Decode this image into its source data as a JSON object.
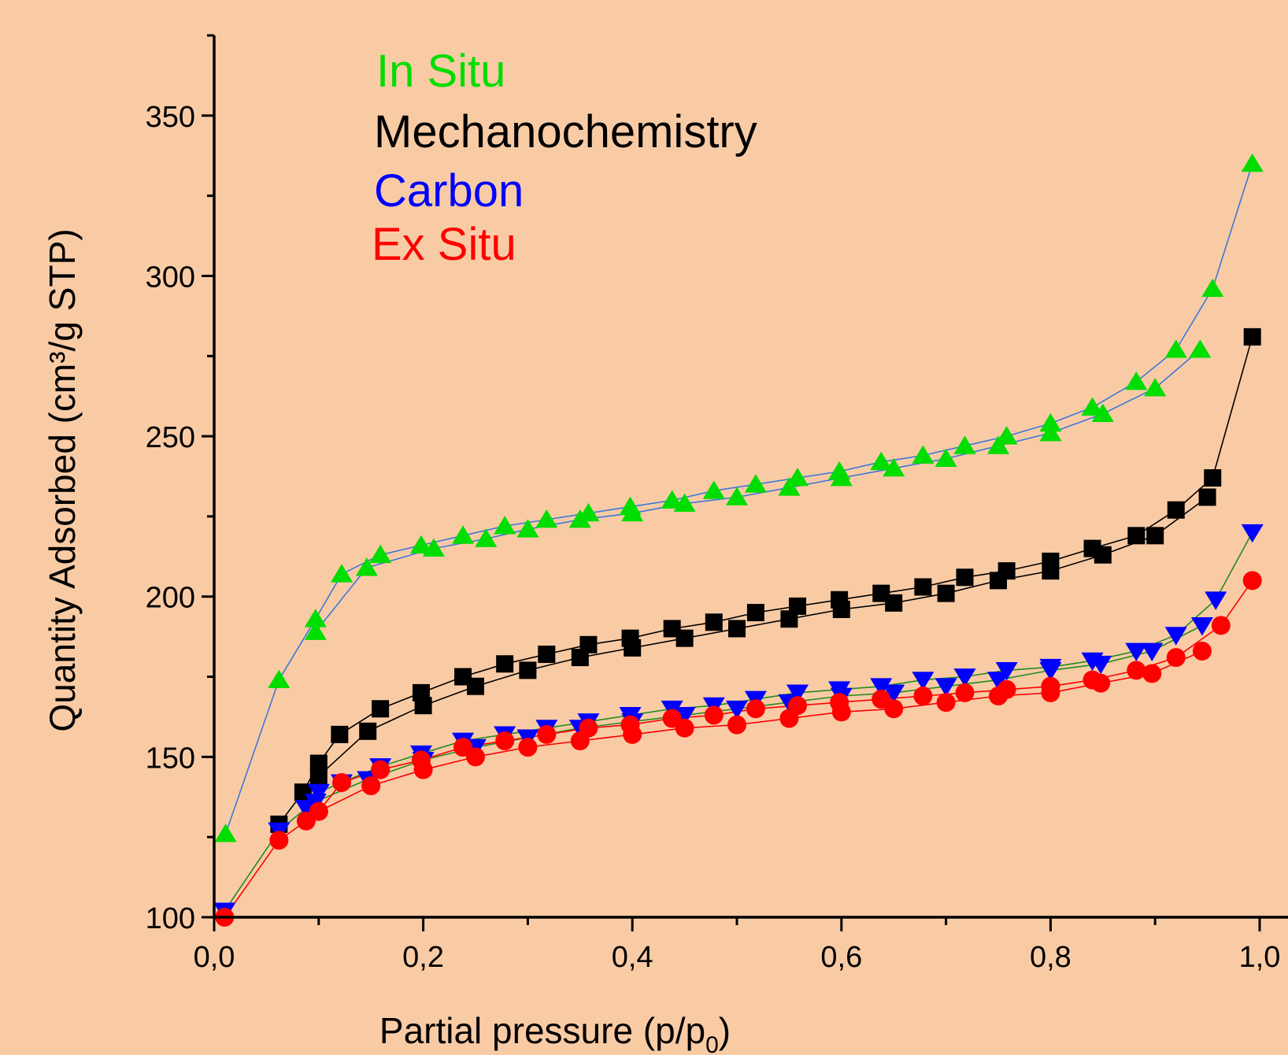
{
  "chart_data": {
    "type": "scatter",
    "background_color": "#F9CBA5",
    "xlabel_main": "Partial pressure (p/p",
    "xlabel_sub": "0",
    "xlabel_close": ")",
    "ylabel": "Quantity Adsorbed (cm³/g STP)",
    "xlim": [
      0,
      1.0
    ],
    "ylim": [
      100,
      375
    ],
    "x_ticks": [
      {
        "v": 0,
        "label": "0,0"
      },
      {
        "v": 0.2,
        "label": "0,2"
      },
      {
        "v": 0.4,
        "label": "0,4"
      },
      {
        "v": 0.6,
        "label": "0,6"
      },
      {
        "v": 0.8,
        "label": "0,8"
      },
      {
        "v": 1.0,
        "label": "1,0"
      }
    ],
    "y_ticks": [
      {
        "v": 100,
        "label": "100"
      },
      {
        "v": 150,
        "label": "150"
      },
      {
        "v": 200,
        "label": "200"
      },
      {
        "v": 250,
        "label": "250"
      },
      {
        "v": 300,
        "label": "300"
      },
      {
        "v": 350,
        "label": "350"
      }
    ],
    "grid": false,
    "legend_position": "top-left",
    "series": [
      {
        "name": "In Situ",
        "marker": "triangle-up",
        "color": "#00DD00",
        "line_color": "#3C78D8",
        "adsorption": [
          [
            0.011,
            126
          ],
          [
            0.062,
            174
          ],
          [
            0.097,
            193
          ],
          [
            0.122,
            207
          ],
          [
            0.159,
            213
          ],
          [
            0.198,
            216
          ],
          [
            0.238,
            219
          ],
          [
            0.278,
            222
          ],
          [
            0.318,
            224
          ],
          [
            0.358,
            226
          ],
          [
            0.398,
            228
          ],
          [
            0.438,
            230
          ],
          [
            0.478,
            233
          ],
          [
            0.518,
            235
          ],
          [
            0.558,
            237
          ],
          [
            0.598,
            239
          ],
          [
            0.638,
            242
          ],
          [
            0.678,
            244
          ],
          [
            0.718,
            247
          ],
          [
            0.758,
            250
          ],
          [
            0.8,
            254
          ],
          [
            0.84,
            259
          ],
          [
            0.882,
            267
          ],
          [
            0.92,
            277
          ],
          [
            0.955,
            296
          ],
          [
            0.993,
            335
          ]
        ],
        "desorption": [
          [
            0.943,
            277
          ],
          [
            0.9,
            265
          ],
          [
            0.85,
            257
          ],
          [
            0.8,
            251
          ],
          [
            0.75,
            247
          ],
          [
            0.7,
            243
          ],
          [
            0.65,
            240
          ],
          [
            0.6,
            237
          ],
          [
            0.55,
            234
          ],
          [
            0.5,
            231
          ],
          [
            0.45,
            229
          ],
          [
            0.4,
            226
          ],
          [
            0.35,
            224
          ],
          [
            0.3,
            221
          ],
          [
            0.26,
            218
          ],
          [
            0.21,
            215
          ],
          [
            0.146,
            209
          ],
          [
            0.097,
            189
          ]
        ]
      },
      {
        "name": "Mechanochemistry",
        "marker": "square",
        "color": "#000000",
        "line_color": "#000000",
        "adsorption": [
          [
            0.062,
            129
          ],
          [
            0.085,
            139
          ],
          [
            0.1,
            148
          ],
          [
            0.12,
            157
          ],
          [
            0.159,
            165
          ],
          [
            0.198,
            170
          ],
          [
            0.238,
            175
          ],
          [
            0.278,
            179
          ],
          [
            0.318,
            182
          ],
          [
            0.358,
            185
          ],
          [
            0.398,
            187
          ],
          [
            0.438,
            190
          ],
          [
            0.478,
            192
          ],
          [
            0.518,
            195
          ],
          [
            0.558,
            197
          ],
          [
            0.598,
            199
          ],
          [
            0.638,
            201
          ],
          [
            0.678,
            203
          ],
          [
            0.718,
            206
          ],
          [
            0.758,
            208
          ],
          [
            0.8,
            211
          ],
          [
            0.84,
            215
          ],
          [
            0.882,
            219
          ],
          [
            0.92,
            227
          ],
          [
            0.955,
            237
          ],
          [
            0.993,
            281
          ]
        ],
        "desorption": [
          [
            0.95,
            231
          ],
          [
            0.9,
            219
          ],
          [
            0.85,
            213
          ],
          [
            0.8,
            208
          ],
          [
            0.75,
            205
          ],
          [
            0.7,
            201
          ],
          [
            0.65,
            198
          ],
          [
            0.6,
            196
          ],
          [
            0.55,
            193
          ],
          [
            0.5,
            190
          ],
          [
            0.45,
            187
          ],
          [
            0.4,
            184
          ],
          [
            0.35,
            181
          ],
          [
            0.3,
            177
          ],
          [
            0.25,
            172
          ],
          [
            0.2,
            166
          ],
          [
            0.147,
            158
          ],
          [
            0.1,
            144
          ]
        ]
      },
      {
        "name": "Carbon",
        "marker": "triangle-down",
        "color": "#0000FF",
        "line_color": "#228B22",
        "adsorption": [
          [
            0.01,
            102
          ],
          [
            0.062,
            127
          ],
          [
            0.088,
            134
          ],
          [
            0.1,
            139
          ],
          [
            0.122,
            142
          ],
          [
            0.159,
            147
          ],
          [
            0.198,
            151
          ],
          [
            0.238,
            155
          ],
          [
            0.278,
            157
          ],
          [
            0.318,
            159
          ],
          [
            0.358,
            161
          ],
          [
            0.398,
            163
          ],
          [
            0.438,
            165
          ],
          [
            0.478,
            166
          ],
          [
            0.518,
            168
          ],
          [
            0.558,
            170
          ],
          [
            0.598,
            171
          ],
          [
            0.638,
            172
          ],
          [
            0.678,
            174
          ],
          [
            0.718,
            175
          ],
          [
            0.758,
            177
          ],
          [
            0.8,
            178
          ],
          [
            0.84,
            180
          ],
          [
            0.882,
            183
          ],
          [
            0.92,
            188
          ],
          [
            0.958,
            199
          ],
          [
            0.993,
            220
          ]
        ],
        "desorption": [
          [
            0.945,
            191
          ],
          [
            0.897,
            183
          ],
          [
            0.848,
            179
          ],
          [
            0.8,
            177
          ],
          [
            0.75,
            174
          ],
          [
            0.7,
            172
          ],
          [
            0.65,
            170
          ],
          [
            0.6,
            169
          ],
          [
            0.55,
            167
          ],
          [
            0.5,
            165
          ],
          [
            0.45,
            163
          ],
          [
            0.4,
            161
          ],
          [
            0.35,
            159
          ],
          [
            0.3,
            156
          ],
          [
            0.25,
            153
          ],
          [
            0.2,
            149
          ],
          [
            0.147,
            143
          ],
          [
            0.097,
            136
          ]
        ]
      },
      {
        "name": "Ex Situ",
        "marker": "circle",
        "color": "#FF0000",
        "line_color": "#FF0000",
        "adsorption": [
          [
            0.01,
            100
          ],
          [
            0.062,
            124
          ],
          [
            0.088,
            130
          ],
          [
            0.1,
            133
          ],
          [
            0.122,
            142
          ],
          [
            0.159,
            146
          ],
          [
            0.198,
            149
          ],
          [
            0.238,
            153
          ],
          [
            0.278,
            155
          ],
          [
            0.318,
            157
          ],
          [
            0.358,
            159
          ],
          [
            0.398,
            160
          ],
          [
            0.438,
            162
          ],
          [
            0.478,
            163
          ],
          [
            0.518,
            165
          ],
          [
            0.558,
            166
          ],
          [
            0.598,
            167
          ],
          [
            0.638,
            168
          ],
          [
            0.678,
            169
          ],
          [
            0.718,
            170
          ],
          [
            0.758,
            171
          ],
          [
            0.8,
            172
          ],
          [
            0.84,
            174
          ],
          [
            0.882,
            177
          ],
          [
            0.92,
            181
          ],
          [
            0.963,
            191
          ],
          [
            0.993,
            205
          ]
        ],
        "desorption": [
          [
            0.945,
            183
          ],
          [
            0.897,
            176
          ],
          [
            0.848,
            173
          ],
          [
            0.8,
            170
          ],
          [
            0.75,
            169
          ],
          [
            0.7,
            167
          ],
          [
            0.65,
            165
          ],
          [
            0.6,
            164
          ],
          [
            0.55,
            162
          ],
          [
            0.5,
            160
          ],
          [
            0.45,
            159
          ],
          [
            0.4,
            157
          ],
          [
            0.35,
            155
          ],
          [
            0.3,
            153
          ],
          [
            0.25,
            150
          ],
          [
            0.2,
            146
          ],
          [
            0.15,
            141
          ],
          [
            0.1,
            133
          ]
        ]
      }
    ]
  }
}
